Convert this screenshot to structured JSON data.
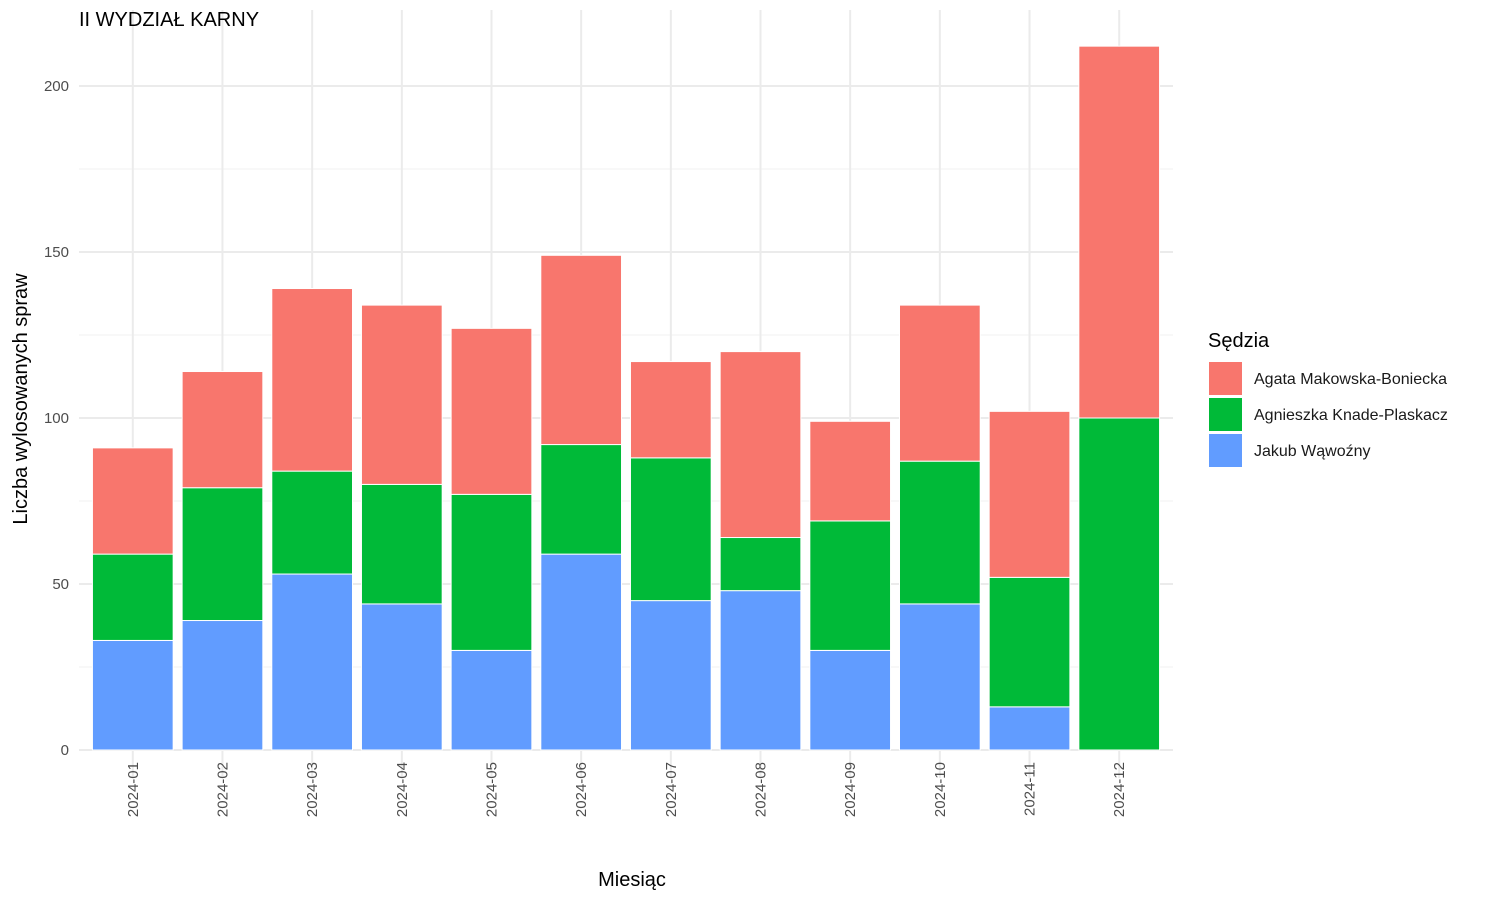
{
  "chart_data": {
    "type": "bar",
    "stacked": true,
    "title": "II WYDZIAŁ KARNY",
    "xlabel": "Miesiąc",
    "ylabel": "Liczba wylosowanych spraw",
    "ylim": [
      0,
      220
    ],
    "y_ticks": [
      "0",
      "50",
      "100",
      "150",
      "200"
    ],
    "grid": true,
    "legend_position": "right",
    "legend_title": "Sędzia",
    "categories": [
      "2024-01",
      "2024-02",
      "2024-03",
      "2024-04",
      "2024-05",
      "2024-06",
      "2024-07",
      "2024-08",
      "2024-09",
      "2024-10",
      "2024-11",
      "2024-12"
    ],
    "series": [
      {
        "name": "Jakub Wąwoźny",
        "color": "#619CFF",
        "values": [
          33,
          39,
          53,
          44,
          30,
          59,
          45,
          48,
          30,
          44,
          13,
          0
        ]
      },
      {
        "name": "Agnieszka Knade-Plaskacz",
        "color": "#00BA38",
        "values": [
          26,
          40,
          31,
          36,
          47,
          33,
          43,
          16,
          39,
          43,
          39,
          100
        ]
      },
      {
        "name": "Agata Makowska-Boniecka",
        "color": "#F8766D",
        "values": [
          32,
          35,
          55,
          54,
          50,
          57,
          29,
          56,
          30,
          47,
          50,
          112
        ]
      }
    ],
    "legend_order": [
      "Agata Makowska-Boniecka",
      "Agnieszka Knade-Plaskacz",
      "Jakub Wąwoźny"
    ]
  }
}
